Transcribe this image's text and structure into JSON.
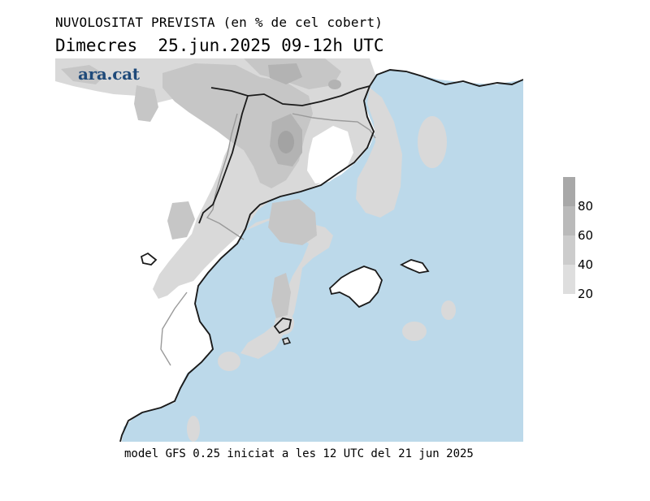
{
  "title_line1": "NUVOLOSITAT PREVISTA (en % de cel cobert)",
  "title_line2": "Dimecres  25.jun.2025 09-12h UTC",
  "logo_text": "ara.cat",
  "legend": {
    "labels": [
      "80",
      "60",
      "40",
      "20"
    ],
    "colors": [
      "#a8a8a8",
      "#bababa",
      "#cccccc",
      "#dedede",
      "#ececec"
    ]
  },
  "footer": "model GFS 0.25 iniciat a les 12 UTC del 21 jun 2025",
  "map_colors": {
    "sea": "#bcd9ea",
    "land": "#ffffff",
    "cloud_20": "#d9d9d9",
    "cloud_40": "#c6c6c6",
    "cloud_60": "#b3b3b3",
    "coast": "#1a1a1a",
    "border_national": "#1a1a1a",
    "border_regional": "#9a9a9a"
  }
}
